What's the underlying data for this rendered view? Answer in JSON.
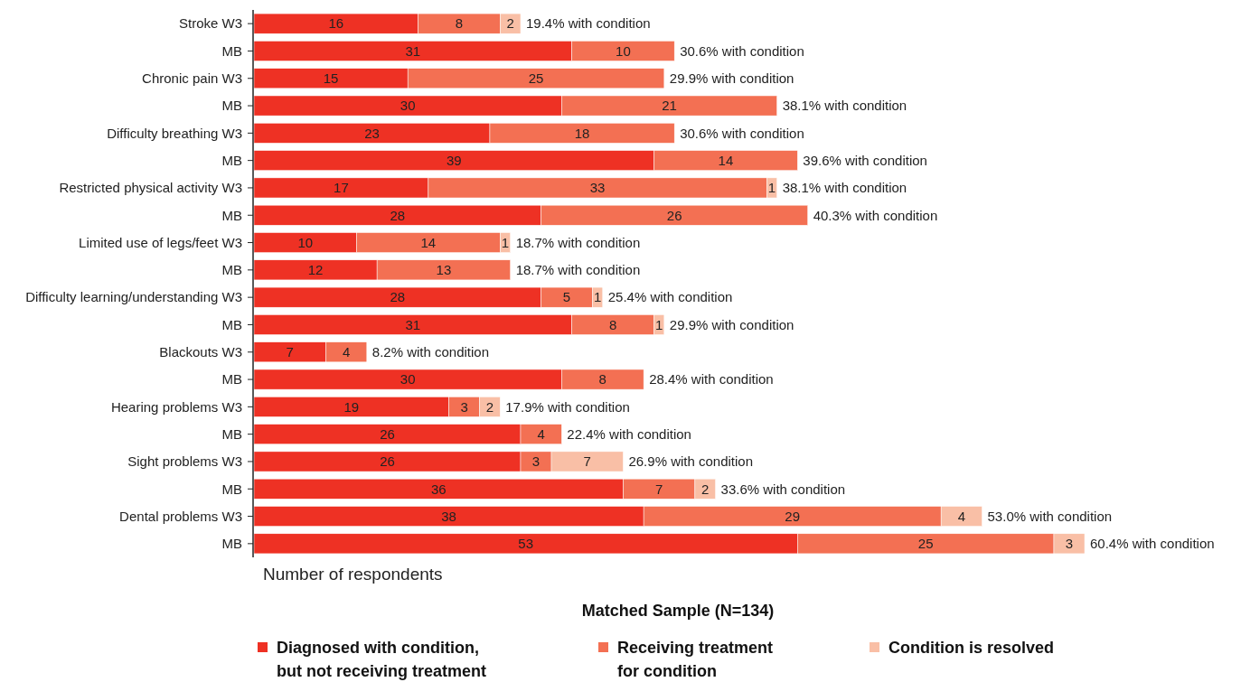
{
  "chart_data": {
    "type": "bar",
    "orientation": "horizontal",
    "stacked": true,
    "data_labels": true,
    "legend": "bottom",
    "xlabel": "Number of respondents",
    "legend_title": "Matched Sample (N=134)",
    "categories": [
      "Stroke W3",
      "MB",
      "Chronic pain W3",
      "MB",
      "Difficulty breathing W3",
      "MB",
      "Restricted physical activity W3",
      "MB",
      "Limited use of legs/feet W3",
      "MB",
      "Difficulty learning/understanding W3",
      "MB",
      "Blackouts W3",
      "MB",
      "Hearing problems W3",
      "MB",
      "Sight problems W3",
      "MB",
      "Dental problems W3",
      "MB"
    ],
    "series": [
      {
        "name": "Diagnosed with condition, but not receiving treatment",
        "color": "#ee3124",
        "values": [
          16,
          31,
          15,
          30,
          23,
          39,
          17,
          28,
          10,
          12,
          28,
          31,
          7,
          30,
          19,
          26,
          26,
          36,
          38,
          53
        ]
      },
      {
        "name": "Receiving treatment for condition",
        "color": "#f37053",
        "values": [
          8,
          10,
          25,
          21,
          18,
          14,
          33,
          26,
          14,
          13,
          5,
          8,
          4,
          8,
          3,
          4,
          3,
          7,
          29,
          25
        ]
      },
      {
        "name": "Condition is resolved",
        "color": "#f9bfa6",
        "values": [
          2,
          null,
          null,
          null,
          null,
          null,
          1,
          null,
          1,
          null,
          1,
          1,
          null,
          null,
          2,
          null,
          7,
          2,
          4,
          3
        ]
      }
    ],
    "annotations": [
      "19.4% with condition",
      "30.6% with condition",
      "29.9% with condition",
      "38.1% with condition",
      "30.6% with condition",
      "39.6% with condition",
      "38.1% with condition",
      "40.3% with condition",
      "18.7% with condition",
      "18.7% with condition",
      "25.4% with condition",
      "29.9% with condition",
      "8.2% with condition",
      "28.4% with condition",
      "17.9% with condition",
      "22.4% with condition",
      "26.9% with condition",
      "33.6% with condition",
      "53.0% with condition",
      "60.4% with condition"
    ]
  }
}
